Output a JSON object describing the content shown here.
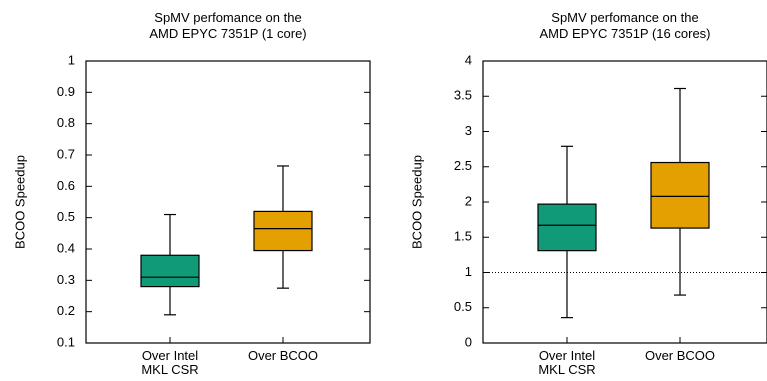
{
  "chart_data": [
    {
      "type": "box",
      "title": [
        "SpMV perfomance on the",
        "AMD EPYC 7351P (1 core)"
      ],
      "ylabel": "BCOO Speedup",
      "ylim": [
        0.1,
        1.0
      ],
      "yticks": [
        "0.1",
        "0.2",
        "0.3",
        "0.4",
        "0.5",
        "0.6",
        "0.7",
        "0.8",
        "0.9",
        "1"
      ],
      "yticks_values": [
        0.1,
        0.2,
        0.3,
        0.4,
        0.5,
        0.6,
        0.7,
        0.8,
        0.9,
        1.0
      ],
      "categories": [
        [
          "Over Intel",
          "MKL CSR"
        ],
        [
          "Over BCOO"
        ]
      ],
      "boxes": [
        {
          "whisker_low": 0.19,
          "q1": 0.28,
          "median": 0.31,
          "q3": 0.38,
          "whisker_high": 0.51,
          "color": "#119a78"
        },
        {
          "whisker_low": 0.275,
          "q1": 0.395,
          "median": 0.465,
          "q3": 0.52,
          "whisker_high": 0.665,
          "color": "#e49f00"
        }
      ],
      "reference_line": null
    },
    {
      "type": "box",
      "title": [
        "SpMV perfomance on the",
        "AMD EPYC 7351P (16 cores)"
      ],
      "ylabel": "BCOO Speedup",
      "ylim": [
        0,
        4
      ],
      "yticks": [
        "0",
        "0.5",
        "1",
        "1.5",
        "2",
        "2.5",
        "3",
        "3.5",
        "4"
      ],
      "yticks_values": [
        0,
        0.5,
        1,
        1.5,
        2,
        2.5,
        3,
        3.5,
        4
      ],
      "categories": [
        [
          "Over Intel",
          "MKL CSR"
        ],
        [
          "Over BCOO"
        ]
      ],
      "boxes": [
        {
          "whisker_low": 0.36,
          "q1": 1.31,
          "median": 1.67,
          "q3": 1.97,
          "whisker_high": 2.79,
          "color": "#119a78"
        },
        {
          "whisker_low": 0.68,
          "q1": 1.63,
          "median": 2.08,
          "q3": 2.56,
          "whisker_high": 3.61,
          "color": "#e49f00"
        }
      ],
      "reference_line": {
        "y": 1,
        "style": "dotted"
      }
    }
  ]
}
